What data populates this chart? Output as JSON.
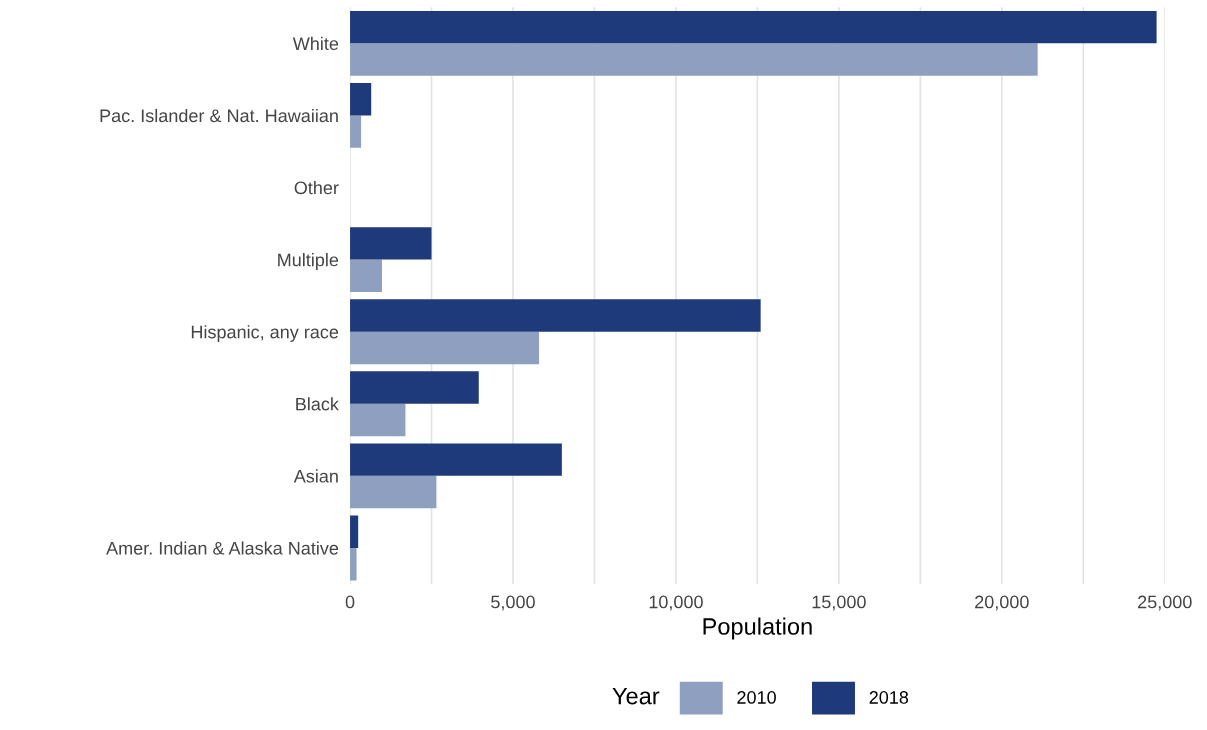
{
  "chart_data": {
    "type": "bar",
    "orientation": "horizontal",
    "xlabel": "Population",
    "legend_title": "Year",
    "legend": "bottom",
    "grid": "x",
    "categories": [
      "White",
      "Pac. Islander & Nat. Hawaiian",
      "Other",
      "Multiple",
      "Hispanic, any race",
      "Black",
      "Asian",
      "Amer. Indian & Alaska Native"
    ],
    "series": [
      {
        "name": "2010",
        "color": "#8f9fc0",
        "values": [
          21100,
          340,
          null,
          980,
          5800,
          1700,
          2650,
          200
        ]
      },
      {
        "name": "2018",
        "color": "#1f3a7a",
        "values": [
          24750,
          650,
          null,
          2500,
          12600,
          3950,
          6500,
          250
        ]
      }
    ],
    "xlim": [
      0,
      25000
    ],
    "xticks": [
      0,
      {
        "value": 2500,
        "label": null
      },
      {
        "value": 5000,
        "label": "5,000"
      },
      {
        "value": 7500,
        "label": null
      },
      {
        "value": 10000,
        "label": "10,000"
      },
      {
        "value": 12500,
        "label": null
      },
      {
        "value": 15000,
        "label": "15,000"
      },
      {
        "value": 17500,
        "label": null
      },
      {
        "value": 20000,
        "label": "20,000"
      },
      {
        "value": 22500,
        "label": null
      },
      {
        "value": 25000,
        "label": "25,000"
      }
    ]
  }
}
